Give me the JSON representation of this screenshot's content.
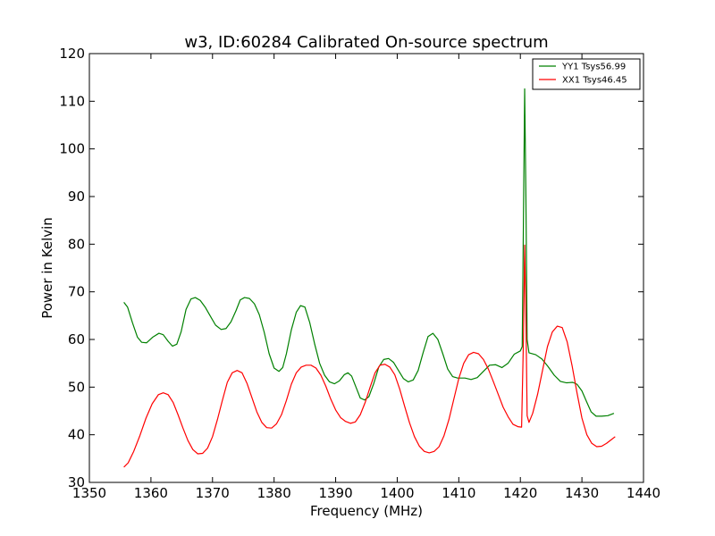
{
  "chart_data": {
    "type": "line",
    "title": "w3, ID:60284 Calibrated On-source spectrum",
    "xlabel": "Frequency (MHz)",
    "ylabel": "Power in Kelvin",
    "xlim": [
      1350,
      1440
    ],
    "ylim": [
      30,
      120
    ],
    "xticks": [
      1350,
      1360,
      1370,
      1380,
      1390,
      1400,
      1410,
      1420,
      1430,
      1440
    ],
    "yticks": [
      30,
      40,
      50,
      60,
      70,
      80,
      90,
      100,
      110,
      120
    ],
    "xtick_labels": [
      "1350",
      "1360",
      "1370",
      "1380",
      "1390",
      "1400",
      "1410",
      "1420",
      "1430",
      "1440"
    ],
    "ytick_labels": [
      "30",
      "40",
      "50",
      "60",
      "70",
      "80",
      "90",
      "100",
      "110",
      "120"
    ],
    "grid": false,
    "legend_position": "top-right",
    "series": [
      {
        "name": "YY1 Tsys56.99",
        "color": "#008000",
        "points": [
          [
            1355.6,
            67.8
          ],
          [
            1356.2,
            66.8
          ],
          [
            1357.0,
            63.5
          ],
          [
            1357.8,
            60.5
          ],
          [
            1358.5,
            59.4
          ],
          [
            1359.3,
            59.3
          ],
          [
            1360.3,
            60.5
          ],
          [
            1361.3,
            61.3
          ],
          [
            1362.0,
            61.0
          ],
          [
            1362.8,
            59.6
          ],
          [
            1363.5,
            58.6
          ],
          [
            1364.2,
            59.0
          ],
          [
            1364.9,
            61.6
          ],
          [
            1365.7,
            66.3
          ],
          [
            1366.5,
            68.5
          ],
          [
            1367.2,
            68.8
          ],
          [
            1368.0,
            68.2
          ],
          [
            1368.8,
            66.8
          ],
          [
            1369.6,
            65.0
          ],
          [
            1370.5,
            63.0
          ],
          [
            1371.4,
            62.1
          ],
          [
            1372.2,
            62.3
          ],
          [
            1373.0,
            63.7
          ],
          [
            1373.8,
            66.0
          ],
          [
            1374.5,
            68.3
          ],
          [
            1375.2,
            68.8
          ],
          [
            1376.0,
            68.6
          ],
          [
            1376.8,
            67.5
          ],
          [
            1377.6,
            65.2
          ],
          [
            1378.4,
            61.5
          ],
          [
            1379.2,
            57.0
          ],
          [
            1380.0,
            54.0
          ],
          [
            1380.8,
            53.3
          ],
          [
            1381.4,
            54.1
          ],
          [
            1382.0,
            57.0
          ],
          [
            1382.8,
            62.0
          ],
          [
            1383.6,
            65.7
          ],
          [
            1384.3,
            67.1
          ],
          [
            1385.0,
            66.8
          ],
          [
            1385.8,
            63.5
          ],
          [
            1386.6,
            59.0
          ],
          [
            1387.4,
            55.0
          ],
          [
            1388.2,
            52.5
          ],
          [
            1389.0,
            51.1
          ],
          [
            1389.8,
            50.7
          ],
          [
            1390.6,
            51.3
          ],
          [
            1391.4,
            52.6
          ],
          [
            1392.0,
            53.0
          ],
          [
            1392.6,
            52.3
          ],
          [
            1393.3,
            50.0
          ],
          [
            1394.0,
            47.7
          ],
          [
            1394.7,
            47.3
          ],
          [
            1395.4,
            48.0
          ],
          [
            1396.2,
            50.8
          ],
          [
            1397.0,
            54.2
          ],
          [
            1397.8,
            55.8
          ],
          [
            1398.6,
            56.0
          ],
          [
            1399.4,
            55.2
          ],
          [
            1400.2,
            53.5
          ],
          [
            1401.0,
            51.8
          ],
          [
            1401.8,
            51.1
          ],
          [
            1402.6,
            51.5
          ],
          [
            1403.4,
            53.5
          ],
          [
            1404.2,
            57.2
          ],
          [
            1405.0,
            60.6
          ],
          [
            1405.8,
            61.3
          ],
          [
            1406.6,
            60.0
          ],
          [
            1407.4,
            57.0
          ],
          [
            1408.2,
            53.8
          ],
          [
            1409.0,
            52.2
          ],
          [
            1409.8,
            51.9
          ],
          [
            1411.0,
            51.9
          ],
          [
            1412.0,
            51.6
          ],
          [
            1413.0,
            52.0
          ],
          [
            1414.0,
            53.3
          ],
          [
            1415.0,
            54.6
          ],
          [
            1416.0,
            54.7
          ],
          [
            1417.0,
            54.1
          ],
          [
            1418.0,
            55.0
          ],
          [
            1419.0,
            56.9
          ],
          [
            1420.0,
            57.6
          ],
          [
            1420.3,
            58.5
          ],
          [
            1420.5,
            85.0
          ],
          [
            1420.7,
            112.6
          ],
          [
            1420.9,
            90.0
          ],
          [
            1421.1,
            60.0
          ],
          [
            1421.4,
            57.2
          ],
          [
            1422.5,
            56.8
          ],
          [
            1423.5,
            55.9
          ],
          [
            1424.5,
            54.3
          ],
          [
            1425.5,
            52.5
          ],
          [
            1426.5,
            51.2
          ],
          [
            1427.5,
            50.9
          ],
          [
            1428.5,
            51.0
          ],
          [
            1429.2,
            50.6
          ],
          [
            1430.0,
            49.2
          ],
          [
            1430.8,
            46.8
          ],
          [
            1431.5,
            44.8
          ],
          [
            1432.3,
            43.9
          ],
          [
            1433.2,
            43.9
          ],
          [
            1434.2,
            44.0
          ],
          [
            1435.2,
            44.5
          ]
        ]
      },
      {
        "name": "XX1 Tsys46.45",
        "color": "#ff0000",
        "points": [
          [
            1355.6,
            33.2
          ],
          [
            1356.3,
            34.1
          ],
          [
            1357.2,
            36.5
          ],
          [
            1358.2,
            39.8
          ],
          [
            1359.2,
            43.5
          ],
          [
            1360.2,
            46.5
          ],
          [
            1361.2,
            48.4
          ],
          [
            1362.0,
            48.8
          ],
          [
            1362.8,
            48.4
          ],
          [
            1363.6,
            46.8
          ],
          [
            1364.4,
            44.2
          ],
          [
            1365.2,
            41.4
          ],
          [
            1366.0,
            38.8
          ],
          [
            1366.8,
            36.9
          ],
          [
            1367.6,
            36.0
          ],
          [
            1368.4,
            36.1
          ],
          [
            1369.2,
            37.2
          ],
          [
            1370.0,
            39.6
          ],
          [
            1370.8,
            43.2
          ],
          [
            1371.6,
            47.2
          ],
          [
            1372.4,
            51.0
          ],
          [
            1373.2,
            53.0
          ],
          [
            1374.0,
            53.5
          ],
          [
            1374.8,
            53.0
          ],
          [
            1375.6,
            50.8
          ],
          [
            1376.4,
            47.8
          ],
          [
            1377.2,
            44.8
          ],
          [
            1378.0,
            42.6
          ],
          [
            1378.8,
            41.5
          ],
          [
            1379.6,
            41.4
          ],
          [
            1380.4,
            42.3
          ],
          [
            1381.2,
            44.2
          ],
          [
            1382.0,
            47.2
          ],
          [
            1382.8,
            50.6
          ],
          [
            1383.6,
            53.0
          ],
          [
            1384.4,
            54.2
          ],
          [
            1385.2,
            54.6
          ],
          [
            1386.0,
            54.6
          ],
          [
            1386.8,
            54.0
          ],
          [
            1387.6,
            52.5
          ],
          [
            1388.4,
            50.2
          ],
          [
            1389.2,
            47.5
          ],
          [
            1390.0,
            45.2
          ],
          [
            1390.8,
            43.6
          ],
          [
            1391.6,
            42.8
          ],
          [
            1392.4,
            42.4
          ],
          [
            1393.2,
            42.7
          ],
          [
            1394.0,
            44.2
          ],
          [
            1394.8,
            46.8
          ],
          [
            1395.6,
            50.0
          ],
          [
            1396.4,
            53.0
          ],
          [
            1397.2,
            54.6
          ],
          [
            1398.0,
            54.8
          ],
          [
            1398.8,
            54.2
          ],
          [
            1399.6,
            52.6
          ],
          [
            1400.4,
            49.6
          ],
          [
            1401.2,
            46.0
          ],
          [
            1402.0,
            42.5
          ],
          [
            1402.8,
            39.6
          ],
          [
            1403.6,
            37.6
          ],
          [
            1404.4,
            36.5
          ],
          [
            1405.2,
            36.2
          ],
          [
            1406.0,
            36.5
          ],
          [
            1406.8,
            37.5
          ],
          [
            1407.6,
            39.8
          ],
          [
            1408.4,
            43.2
          ],
          [
            1409.2,
            47.5
          ],
          [
            1410.0,
            51.8
          ],
          [
            1410.8,
            55.0
          ],
          [
            1411.6,
            56.8
          ],
          [
            1412.4,
            57.3
          ],
          [
            1413.2,
            57.0
          ],
          [
            1414.0,
            55.8
          ],
          [
            1414.8,
            53.8
          ],
          [
            1415.6,
            51.2
          ],
          [
            1416.4,
            48.5
          ],
          [
            1417.2,
            45.8
          ],
          [
            1418.0,
            43.8
          ],
          [
            1418.8,
            42.2
          ],
          [
            1419.6,
            41.7
          ],
          [
            1420.2,
            41.6
          ],
          [
            1420.5,
            60.0
          ],
          [
            1420.7,
            79.8
          ],
          [
            1420.9,
            65.0
          ],
          [
            1421.1,
            44.0
          ],
          [
            1421.4,
            42.6
          ],
          [
            1422.0,
            44.5
          ],
          [
            1422.8,
            48.5
          ],
          [
            1423.6,
            53.5
          ],
          [
            1424.4,
            58.5
          ],
          [
            1425.2,
            61.6
          ],
          [
            1426.0,
            62.8
          ],
          [
            1426.8,
            62.5
          ],
          [
            1427.6,
            59.5
          ],
          [
            1428.4,
            54.5
          ],
          [
            1429.2,
            48.8
          ],
          [
            1430.0,
            43.5
          ],
          [
            1430.8,
            40.0
          ],
          [
            1431.6,
            38.2
          ],
          [
            1432.4,
            37.5
          ],
          [
            1433.2,
            37.6
          ],
          [
            1434.0,
            38.2
          ],
          [
            1434.8,
            39.0
          ],
          [
            1435.4,
            39.6
          ]
        ]
      }
    ]
  }
}
